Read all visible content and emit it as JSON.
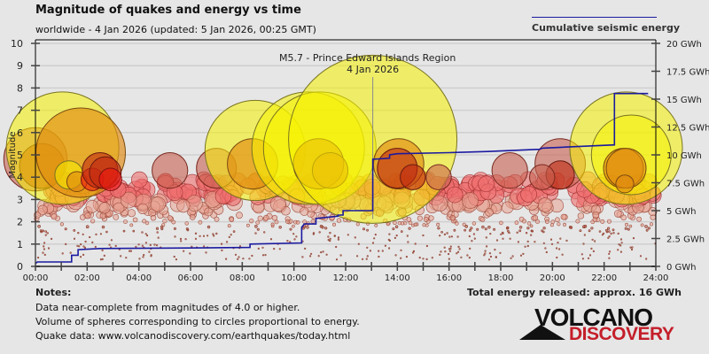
{
  "header": {
    "title": "Magnitude of quakes and energy vs time",
    "subtitle": "worldwide -  4 Jan 2026 (updated: 5 Jan 2026, 00:25 GMT)",
    "legend_label": "Cumulative seismic energy"
  },
  "notes": {
    "title": "Notes:",
    "lines": [
      "Data near-complete from magnitudes of 4.0 or higher.",
      "Volume of spheres corresponding to circles proportional to energy.",
      "Quake data: www.volcanodiscovery.com/earthquakes/today.html"
    ]
  },
  "total_energy": "Total energy released: approx. 16 GWh",
  "logo": {
    "top": "VOLCANO",
    "bottom": "DISCOVERY",
    "bottom_color": "#c41e2a"
  },
  "colors": {
    "energy_line": "#1a1aa0",
    "background": "#e6e6e6",
    "gridline": "#cfcfcf"
  },
  "chart_data": {
    "type": "scatter",
    "title": "Magnitude of quakes and energy vs time",
    "subtitle": "worldwide -  4 Jan 2026 (updated: 5 Jan 2026, 00:25 GMT)",
    "xlabel": "",
    "ylabel": "Magnitude",
    "y2label": "Cumulative seismic energy",
    "xlim_hours": [
      0,
      24
    ],
    "ylim": [
      0,
      10
    ],
    "y2lim_gwh": [
      0,
      20
    ],
    "grid": true,
    "legend_position": "top-right",
    "x_ticks": [
      "00:00",
      "02:00",
      "04:00",
      "06:00",
      "08:00",
      "10:00",
      "12:00",
      "14:00",
      "16:00",
      "18:00",
      "20:00",
      "22:00",
      "24:00"
    ],
    "y_ticks": [
      "0",
      "1",
      "2",
      "3",
      "4",
      "5",
      "6",
      "7",
      "8",
      "9",
      "10"
    ],
    "y2_ticks": [
      "0 GWh",
      "2.5 GWh",
      "5 GWh",
      "7.5 GWh",
      "10 GWh",
      "12.5 GWh",
      "15 GWh",
      "17.5 GWh",
      "20 GWh"
    ],
    "annotation": {
      "text": "M5.7 - Prince Edward Islands Region",
      "date": "4 Jan 2026",
      "hour": 13.05,
      "mag": 5.7
    },
    "energy_series": {
      "name": "Cumulative seismic energy",
      "points_hour_gwh": [
        [
          0.0,
          0.25
        ],
        [
          0.07,
          0.4
        ],
        [
          1.4,
          0.4
        ],
        [
          1.4,
          1.0
        ],
        [
          1.65,
          1.0
        ],
        [
          1.65,
          1.5
        ],
        [
          2.5,
          1.6
        ],
        [
          6.0,
          1.65
        ],
        [
          8.3,
          1.7
        ],
        [
          8.3,
          2.0
        ],
        [
          10.3,
          2.1
        ],
        [
          10.3,
          3.5
        ],
        [
          10.4,
          3.8
        ],
        [
          10.85,
          3.8
        ],
        [
          10.85,
          4.3
        ],
        [
          11.7,
          4.5
        ],
        [
          11.7,
          4.6
        ],
        [
          11.9,
          4.6
        ],
        [
          11.9,
          5.0
        ],
        [
          13.05,
          5.0
        ],
        [
          13.05,
          9.6
        ],
        [
          13.7,
          9.7
        ],
        [
          13.7,
          10.0
        ],
        [
          14.0,
          10.1
        ],
        [
          16.0,
          10.2
        ],
        [
          17.5,
          10.3
        ],
        [
          19.5,
          10.5
        ],
        [
          19.6,
          10.6
        ],
        [
          22.4,
          10.9
        ],
        [
          22.4,
          15.5
        ],
        [
          23.7,
          15.5
        ]
      ]
    },
    "major_quakes": [
      {
        "hour": 0.0,
        "mag": 4.8,
        "color": "brown"
      },
      {
        "hour": 0.25,
        "mag": 4.5,
        "color": "darkred"
      },
      {
        "hour": 1.05,
        "mag": 5.3,
        "color": "yellow"
      },
      {
        "hour": 1.75,
        "mag": 5.1,
        "color": "orange"
      },
      {
        "hour": 1.3,
        "mag": 4.1,
        "color": "yellow"
      },
      {
        "hour": 1.6,
        "mag": 3.8,
        "color": "orange"
      },
      {
        "hour": 2.2,
        "mag": 3.9,
        "color": "red"
      },
      {
        "hour": 2.5,
        "mag": 4.3,
        "color": "darkred"
      },
      {
        "hour": 2.7,
        "mag": 4.2,
        "color": "darkred"
      },
      {
        "hour": 2.9,
        "mag": 3.9,
        "color": "red"
      },
      {
        "hour": 5.2,
        "mag": 4.3,
        "color": "brown"
      },
      {
        "hour": 7.0,
        "mag": 4.4,
        "color": "brown"
      },
      {
        "hour": 8.5,
        "mag": 5.2,
        "color": "yellow"
      },
      {
        "hour": 8.4,
        "mag": 4.6,
        "color": "orange"
      },
      {
        "hour": 10.55,
        "mag": 5.3,
        "color": "yellow"
      },
      {
        "hour": 11.0,
        "mag": 5.3,
        "color": "yellow"
      },
      {
        "hour": 10.95,
        "mag": 4.6,
        "color": "orange"
      },
      {
        "hour": 11.4,
        "mag": 4.3,
        "color": "orange"
      },
      {
        "hour": 13.05,
        "mag": 5.7,
        "color": "yellow"
      },
      {
        "hour": 14.05,
        "mag": 4.6,
        "color": "orange"
      },
      {
        "hour": 14.0,
        "mag": 4.4,
        "color": "darkred"
      },
      {
        "hour": 14.6,
        "mag": 4.0,
        "color": "darkred"
      },
      {
        "hour": 15.6,
        "mag": 4.0,
        "color": "brown"
      },
      {
        "hour": 18.35,
        "mag": 4.3,
        "color": "brown"
      },
      {
        "hour": 20.3,
        "mag": 4.6,
        "color": "brown"
      },
      {
        "hour": 20.3,
        "mag": 4.1,
        "color": "darkred"
      },
      {
        "hour": 19.6,
        "mag": 4.0,
        "color": "brown"
      },
      {
        "hour": 22.85,
        "mag": 5.3,
        "color": "yellow"
      },
      {
        "hour": 23.05,
        "mag": 5.0,
        "color": "yellow"
      },
      {
        "hour": 22.75,
        "mag": 4.4,
        "color": "orange"
      },
      {
        "hour": 22.85,
        "mag": 4.4,
        "color": "orange"
      },
      {
        "hour": 22.8,
        "mag": 3.7,
        "color": "orange"
      }
    ],
    "minor_quakes_note": "Hundreds of smaller events (M0.5-3.9) scattered across the full 24 h"
  }
}
